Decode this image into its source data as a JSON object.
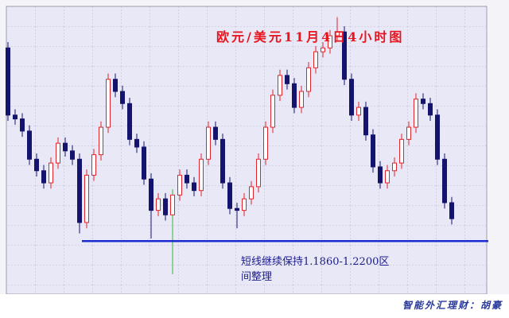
{
  "chart_data": {
    "type": "candlestick",
    "title": "欧元/美元11月4日4小时图",
    "annotation": [
      "短线继续保持1.1860-1.2200区",
      "间整理"
    ],
    "footer": "智能外汇理财：胡豪",
    "ylim": [
      1.1777,
      1.2227
    ],
    "up_color": "#e0242c",
    "down_color": "#14146e",
    "support": {
      "value": 1.186,
      "color": "#1a2ad0"
    },
    "open": [
      1.2162,
      1.2057,
      1.2051,
      1.2032,
      1.1988,
      1.197,
      1.1951,
      1.1982,
      1.2013,
      1.2001,
      1.1988,
      1.1889,
      1.1963,
      1.1995,
      1.2038,
      1.2113,
      1.2094,
      1.2075,
      1.2019,
      1.2007,
      1.1957,
      1.1908,
      1.1926,
      1.1901,
      1.1932,
      1.1963,
      1.1951,
      1.1939,
      1.1988,
      1.2038,
      1.2019,
      1.1951,
      1.1911,
      1.1908,
      1.1926,
      1.1945,
      1.1988,
      1.2038,
      1.2088,
      1.2119,
      1.2106,
      1.2069,
      1.2094,
      1.2131,
      1.2156,
      1.2162,
      1.2181,
      1.2187,
      1.2113,
      1.2057,
      1.2069,
      1.2026,
      1.1976,
      1.1951,
      1.197,
      1.1982,
      1.2019,
      1.2038,
      1.2082,
      1.2075,
      1.2057,
      1.1988,
      1.192
    ],
    "high": [
      1.2171,
      1.2066,
      1.206,
      1.2041,
      1.1997,
      1.1979,
      1.1991,
      1.2022,
      1.2022,
      1.201,
      1.1997,
      1.1972,
      1.2004,
      1.2047,
      1.2122,
      1.2122,
      1.2103,
      1.2084,
      1.2028,
      1.2016,
      1.1966,
      1.1935,
      1.1935,
      1.1941,
      1.1972,
      1.1972,
      1.196,
      1.1997,
      1.2047,
      1.2047,
      1.2028,
      1.196,
      1.192,
      1.1935,
      1.1954,
      1.1997,
      1.2047,
      1.2097,
      1.2128,
      1.2128,
      1.2115,
      1.2103,
      1.214,
      1.2165,
      1.2171,
      1.219,
      1.221,
      1.2196,
      1.2122,
      1.2078,
      1.2078,
      1.2035,
      1.1985,
      1.1979,
      1.1991,
      1.2028,
      1.2047,
      1.2091,
      1.2091,
      1.2084,
      1.2066,
      1.1997,
      1.1929
    ],
    "low": [
      1.2048,
      1.2042,
      1.2023,
      1.1979,
      1.1961,
      1.1942,
      1.1942,
      1.1973,
      1.1992,
      1.1979,
      1.1872,
      1.188,
      1.1954,
      1.1986,
      1.2029,
      1.2085,
      1.2066,
      1.201,
      1.1998,
      1.1948,
      1.1864,
      1.1899,
      1.1892,
      1.1808,
      1.1923,
      1.1942,
      1.193,
      1.193,
      1.1979,
      1.201,
      1.1942,
      1.1902,
      1.188,
      1.1899,
      1.1917,
      1.1936,
      1.1979,
      1.2029,
      1.2079,
      1.2097,
      1.206,
      1.206,
      1.2085,
      1.2122,
      1.2147,
      1.2153,
      1.2172,
      1.2104,
      1.2048,
      1.2048,
      1.2017,
      1.1967,
      1.1942,
      1.1942,
      1.1961,
      1.1973,
      1.201,
      1.2029,
      1.2066,
      1.2048,
      1.1979,
      1.1911,
      1.1886
    ],
    "close": [
      1.2057,
      1.2051,
      1.2032,
      1.1988,
      1.197,
      1.1951,
      1.1982,
      1.2013,
      1.2001,
      1.1988,
      1.1889,
      1.1963,
      1.1995,
      1.2038,
      1.2113,
      1.2094,
      1.2075,
      1.2019,
      1.2007,
      1.1957,
      1.1908,
      1.1926,
      1.1901,
      1.1932,
      1.1963,
      1.1951,
      1.1939,
      1.1988,
      1.2038,
      1.2019,
      1.1951,
      1.1911,
      1.1908,
      1.1926,
      1.1945,
      1.1988,
      1.2038,
      1.2088,
      1.2119,
      1.2106,
      1.2069,
      1.2094,
      1.2131,
      1.2156,
      1.2162,
      1.2181,
      1.2187,
      1.2113,
      1.2057,
      1.2069,
      1.2026,
      1.1976,
      1.1951,
      1.197,
      1.1982,
      1.2019,
      1.2038,
      1.2082,
      1.2075,
      1.2057,
      1.1988,
      1.192,
      1.1895
    ]
  }
}
